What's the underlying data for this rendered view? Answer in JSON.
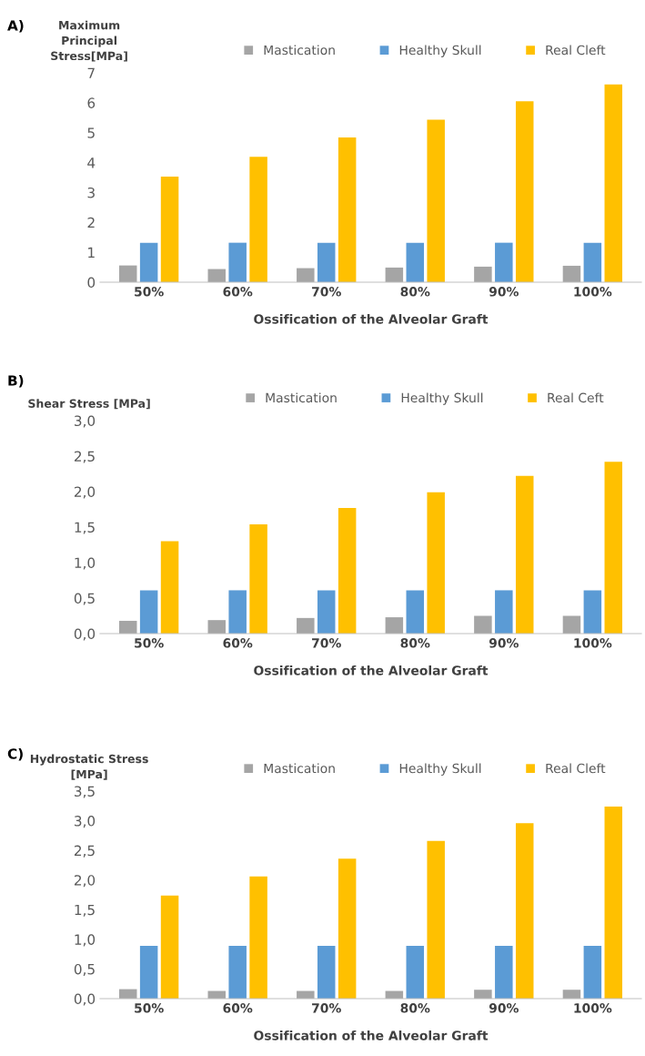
{
  "chart_data": [
    {
      "type": "bar",
      "annotations": [
        "A)"
      ],
      "ylabel": "Maximum\nPrincipal\nStress[MPa]",
      "xlabel": "Ossification of the Alveolar Graft",
      "categories": [
        "50%",
        "60%",
        "70%",
        "80%",
        "90%",
        "100%"
      ],
      "series": [
        {
          "name": "Mastication",
          "color": "#a5a5a5",
          "values": [
            0.56,
            0.44,
            0.47,
            0.49,
            0.52,
            0.55
          ]
        },
        {
          "name": "Healthy Skull",
          "color": "#5b9bd5",
          "values": [
            1.32,
            1.32,
            1.32,
            1.32,
            1.32,
            1.32
          ]
        },
        {
          "name": "Real Cleft",
          "color": "#ffc000",
          "values": [
            3.53,
            4.19,
            4.84,
            5.43,
            6.05,
            6.61
          ]
        }
      ],
      "ylim": [
        0,
        7
      ],
      "yticks": [
        0,
        1,
        2,
        3,
        4,
        5,
        6,
        7
      ],
      "grid": false,
      "legend": "top"
    },
    {
      "type": "bar",
      "annotations": [
        "B)"
      ],
      "ylabel": "Shear Stress [MPa]",
      "xlabel": "Ossification of the Alveolar Graft",
      "categories": [
        "50%",
        "60%",
        "70%",
        "80%",
        "90%",
        "100%"
      ],
      "series": [
        {
          "name": "Mastication",
          "color": "#a5a5a5",
          "values": [
            0.18,
            0.19,
            0.22,
            0.23,
            0.25,
            0.25
          ]
        },
        {
          "name": "Healthy Skull",
          "color": "#5b9bd5",
          "values": [
            0.61,
            0.61,
            0.61,
            0.61,
            0.61,
            0.61
          ]
        },
        {
          "name": "Real Ceft",
          "color": "#ffc000",
          "values": [
            1.3,
            1.54,
            1.77,
            1.99,
            2.22,
            2.42
          ]
        }
      ],
      "ylim": [
        0,
        3.0
      ],
      "yticks": [
        {
          "value": 0,
          "label": "0,0"
        },
        {
          "value": 0.5,
          "label": "0,5"
        },
        {
          "value": 1.0,
          "label": "1,0"
        },
        {
          "value": 1.5,
          "label": "1,5"
        },
        {
          "value": 2.0,
          "label": "2,0"
        },
        {
          "value": 2.5,
          "label": "2,5"
        },
        {
          "value": 3.0,
          "label": "3,0"
        }
      ],
      "grid": false,
      "legend": "top"
    },
    {
      "type": "bar",
      "annotations": [
        "C)"
      ],
      "ylabel": "Hydrostatic Stress\n[MPa]",
      "xlabel": "Ossification of the Alveolar Graft",
      "categories": [
        "50%",
        "60%",
        "70%",
        "80%",
        "90%",
        "100%"
      ],
      "series": [
        {
          "name": "Mastication",
          "color": "#a5a5a5",
          "values": [
            0.16,
            0.13,
            0.13,
            0.13,
            0.15,
            0.15
          ]
        },
        {
          "name": "Healthy Skull",
          "color": "#5b9bd5",
          "values": [
            0.89,
            0.89,
            0.89,
            0.89,
            0.89,
            0.89
          ]
        },
        {
          "name": "Real Cleft",
          "color": "#ffc000",
          "values": [
            1.74,
            2.06,
            2.36,
            2.66,
            2.96,
            3.24
          ]
        }
      ],
      "ylim": [
        0,
        3.5
      ],
      "yticks": [
        {
          "value": 0,
          "label": "0,0"
        },
        {
          "value": 0.5,
          "label": "0,5"
        },
        {
          "value": 1.0,
          "label": "1,0"
        },
        {
          "value": 1.5,
          "label": "1,5"
        },
        {
          "value": 2.0,
          "label": "2,0"
        },
        {
          "value": 2.5,
          "label": "2,5"
        },
        {
          "value": 3.0,
          "label": "3,0"
        },
        {
          "value": 3.5,
          "label": "3,5"
        }
      ],
      "grid": false,
      "legend": "top"
    }
  ]
}
